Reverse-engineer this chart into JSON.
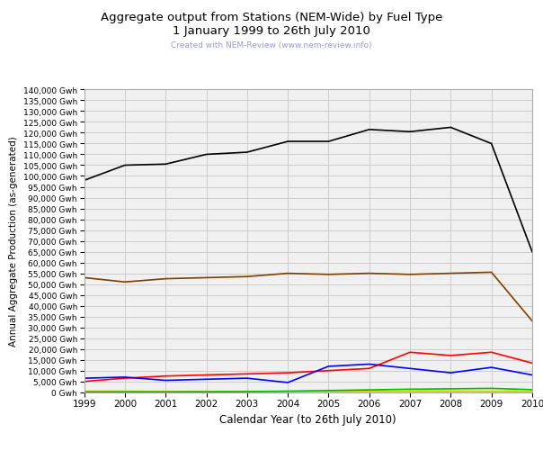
{
  "title_line1": "Aggregate output from Stations (NEM-Wide) by Fuel Type",
  "title_line2": "1 January 1999 to 26th July 2010",
  "subtitle": "Created with NEM-Review (www.nem-review.info)",
  "xlabel": "Calendar Year (to 26th July 2010)",
  "ylabel": "Annual Aggregate Production (as-generated)",
  "years": [
    1999,
    2000,
    2001,
    2002,
    2003,
    2004,
    2005,
    2006,
    2007,
    2008,
    2009,
    2010
  ],
  "black_coal": [
    98000,
    105000,
    105500,
    110000,
    111000,
    116000,
    116000,
    121500,
    120500,
    122500,
    115000,
    65000
  ],
  "brown_coal": [
    53000,
    51000,
    52500,
    53000,
    53500,
    55000,
    54500,
    55000,
    54500,
    55000,
    55500,
    33000
  ],
  "gas_fired": [
    5000,
    6500,
    7500,
    8000,
    8500,
    9000,
    10000,
    11000,
    18500,
    17000,
    18500,
    13500
  ],
  "hydro": [
    6500,
    7000,
    5500,
    6000,
    6500,
    4500,
    12000,
    13000,
    11000,
    9000,
    11500,
    8000
  ],
  "liquid": [
    500,
    500,
    400,
    400,
    400,
    400,
    400,
    400,
    400,
    400,
    400,
    300
  ],
  "wind": [
    100,
    150,
    150,
    200,
    300,
    500,
    800,
    1100,
    1400,
    1600,
    1800,
    1200
  ],
  "color_black_coal": "#000000",
  "color_brown_coal": "#7B3F00",
  "color_gas": "#FF0000",
  "color_hydro": "#0000FF",
  "color_liquid": "#CCCC00",
  "color_wind": "#00BB00",
  "color_subtitle": "#9999CC",
  "bg_color": "#FFFFFF",
  "plot_bg_color": "#F0F0F0",
  "grid_color": "#CCCCCC",
  "ylim": [
    0,
    140000
  ],
  "ytick_step": 5000
}
